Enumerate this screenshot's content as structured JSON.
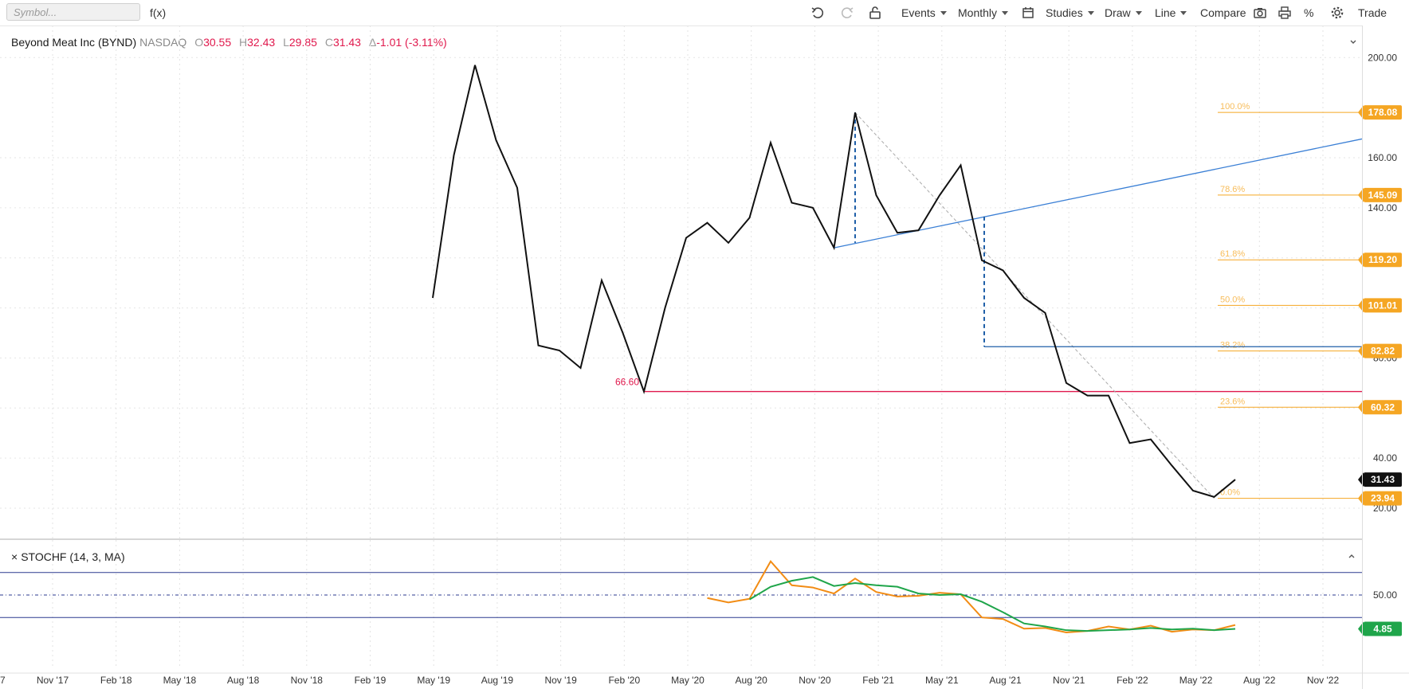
{
  "toolbar": {
    "symbol_placeholder": "Symbol...",
    "fx_label": "f(x)",
    "events_label": "Events",
    "interval_label": "Monthly",
    "studies_label": "Studies",
    "draw_label": "Draw",
    "line_label": "Line",
    "compare_label": "Compare",
    "percent_label": "%",
    "trade_label": "Trade"
  },
  "header": {
    "name": "Beyond Meat Inc (BYND)",
    "exchange": "NASDAQ",
    "open_key": "O",
    "open_val": "30.55",
    "high_key": "H",
    "high_val": "32.43",
    "low_key": "L",
    "low_val": "29.85",
    "close_key": "C",
    "close_val": "31.43",
    "change_key": "Δ",
    "change_val": "-1.01 (-3.11%)",
    "collapse_icon": "chevron-down-icon"
  },
  "stochastic": {
    "label": "STOCHF (14, 3, MA)",
    "close_glyph": "×",
    "mid_value": "50.00",
    "last_value": "4.85",
    "last_color": "#1fa54a"
  },
  "colors": {
    "price_line": "#111111",
    "fib": "#f5a623",
    "support_line": "#e0184c",
    "trend_line": "#3a7fd5",
    "measure_line": "#1f5fa8",
    "stoch_k": "#f28c14",
    "stoch_d": "#1fa54a",
    "stoch_band": "#2b3a8f"
  },
  "chart_data": {
    "type": "line",
    "symbol": "BYND",
    "x_ticks": [
      "7",
      "Nov '17",
      "Feb '18",
      "May '18",
      "Aug '18",
      "Nov '18",
      "Feb '19",
      "May '19",
      "Aug '19",
      "Nov '19",
      "Feb '20",
      "May '20",
      "Aug '20",
      "Nov '20",
      "Feb '21",
      "May '21",
      "Aug '21",
      "Nov '21",
      "Feb '22",
      "May '22",
      "Aug '22",
      "Nov '22"
    ],
    "y_ticks": [
      "200.00",
      "160.00",
      "140.00",
      "80.00",
      "40.00",
      "20.00"
    ],
    "ylim": [
      13,
      213
    ],
    "grid": true,
    "last_price": "31.43",
    "series": [
      {
        "name": "BYND",
        "x": [
          "2019-05",
          "2019-06",
          "2019-07",
          "2019-08",
          "2019-09",
          "2019-10",
          "2019-11",
          "2019-12",
          "2020-01",
          "2020-02",
          "2020-03",
          "2020-04",
          "2020-05",
          "2020-06",
          "2020-07",
          "2020-08",
          "2020-09",
          "2020-10",
          "2020-11",
          "2020-12",
          "2021-01",
          "2021-02",
          "2021-03",
          "2021-04",
          "2021-05",
          "2021-06",
          "2021-07",
          "2021-08",
          "2021-09",
          "2021-10",
          "2021-11",
          "2021-12",
          "2022-01",
          "2022-02",
          "2022-03",
          "2022-04",
          "2022-05",
          "2022-06",
          "2022-07"
        ],
        "values": [
          104,
          161,
          197,
          167,
          148,
          85,
          83,
          76,
          111,
          90,
          66.6,
          100,
          128,
          134,
          126,
          136,
          166,
          142,
          140,
          124,
          178,
          145,
          130,
          131,
          145,
          157,
          119,
          115,
          104,
          98,
          70,
          65,
          65,
          46,
          47.5,
          37,
          27,
          24.5,
          31.43
        ]
      }
    ],
    "annotations": {
      "support_label": "66.60",
      "fib_levels": [
        {
          "pct": "100.0%",
          "price": "178.08"
        },
        {
          "pct": "78.6%",
          "price": "145.09"
        },
        {
          "pct": "61.8%",
          "price": "119.20"
        },
        {
          "pct": "50.0%",
          "price": "101.01"
        },
        {
          "pct": "38.2%",
          "price": "82.82"
        },
        {
          "pct": "23.6%",
          "price": "60.32"
        },
        {
          "pct": "0.0%",
          "price": "23.94"
        }
      ]
    },
    "stochastic": {
      "ylim": [
        0,
        100
      ],
      "bands": [
        80,
        20
      ],
      "mid": 50,
      "k": {
        "x": [
          "2020-06",
          "2020-07",
          "2020-08",
          "2020-09",
          "2020-10",
          "2020-11",
          "2020-12",
          "2021-01",
          "2021-02",
          "2021-03",
          "2021-04",
          "2021-05",
          "2021-06",
          "2021-07",
          "2021-08",
          "2021-09",
          "2021-10",
          "2021-11",
          "2021-12",
          "2022-01",
          "2022-02",
          "2022-03",
          "2022-04",
          "2022-05",
          "2022-06",
          "2022-07"
        ],
        "values": [
          46,
          40,
          45,
          95,
          63,
          60,
          52,
          72,
          54,
          48,
          49,
          53,
          51,
          20,
          18,
          5,
          6,
          0,
          2,
          8,
          4,
          9,
          1,
          4,
          3,
          10
        ]
      },
      "d": {
        "x": [
          "2020-08",
          "2020-09",
          "2020-10",
          "2020-11",
          "2020-12",
          "2021-01",
          "2021-02",
          "2021-03",
          "2021-04",
          "2021-05",
          "2021-06",
          "2021-07",
          "2021-08",
          "2021-09",
          "2021-10",
          "2021-11",
          "2021-12",
          "2022-01",
          "2022-02",
          "2022-03",
          "2022-04",
          "2022-05",
          "2022-06",
          "2022-07"
        ],
        "values": [
          44,
          61,
          69,
          74,
          62,
          66,
          63,
          61,
          52,
          50,
          51,
          41,
          27,
          12,
          8,
          3,
          2,
          3,
          4,
          6,
          4,
          5,
          3,
          4.85
        ]
      }
    }
  }
}
